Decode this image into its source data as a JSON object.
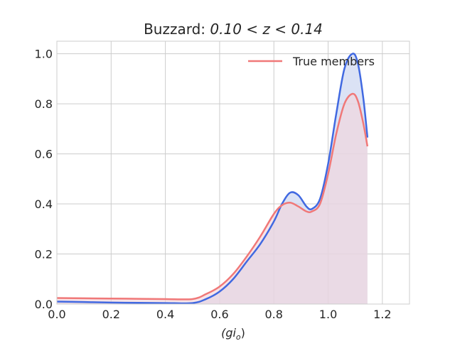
{
  "chart_data": {
    "type": "area",
    "title": "Buzzard: 0.10 < z < 0.14",
    "title_prefix": "Buzzard: ",
    "title_math": "0.10 < z < 0.14",
    "xlabel": "(gi_o)",
    "xlabel_text": "(gi",
    "xlabel_sub": "o",
    "xlabel_close": ")",
    "ylabel": "",
    "xlim": [
      0.0,
      1.3
    ],
    "ylim": [
      0.0,
      1.05
    ],
    "xticks": [
      "0.0",
      "0.2",
      "0.4",
      "0.6",
      "0.8",
      "1.0",
      "1.2"
    ],
    "yticks": [
      "0.0",
      "0.2",
      "0.4",
      "0.6",
      "0.8",
      "1.0"
    ],
    "grid": true,
    "legend_position": "top-right",
    "style": "seaborn-whitegrid",
    "series": [
      {
        "name": "",
        "color": "#4169e1",
        "fill": "#c8d2f0",
        "x": [
          0.0,
          0.1,
          0.2,
          0.3,
          0.4,
          0.5,
          0.55,
          0.6,
          0.65,
          0.7,
          0.75,
          0.8,
          0.83,
          0.86,
          0.89,
          0.92,
          0.94,
          0.97,
          1.0,
          1.03,
          1.06,
          1.09,
          1.11,
          1.13,
          1.145
        ],
        "y": [
          0.01,
          0.008,
          0.006,
          0.005,
          0.004,
          0.004,
          0.02,
          0.05,
          0.1,
          0.17,
          0.24,
          0.33,
          0.4,
          0.445,
          0.435,
          0.39,
          0.38,
          0.42,
          0.56,
          0.76,
          0.94,
          1.0,
          0.96,
          0.82,
          0.665
        ]
      },
      {
        "name": "True members",
        "color": "#f07878",
        "fill": "#f2d6dc",
        "x": [
          0.0,
          0.1,
          0.2,
          0.3,
          0.4,
          0.5,
          0.55,
          0.6,
          0.65,
          0.7,
          0.75,
          0.8,
          0.83,
          0.86,
          0.89,
          0.92,
          0.94,
          0.97,
          1.0,
          1.03,
          1.06,
          1.09,
          1.11,
          1.13,
          1.145
        ],
        "y": [
          0.024,
          0.023,
          0.022,
          0.021,
          0.02,
          0.02,
          0.04,
          0.07,
          0.12,
          0.19,
          0.27,
          0.36,
          0.395,
          0.405,
          0.39,
          0.37,
          0.37,
          0.4,
          0.52,
          0.68,
          0.8,
          0.84,
          0.81,
          0.72,
          0.63
        ]
      }
    ]
  }
}
